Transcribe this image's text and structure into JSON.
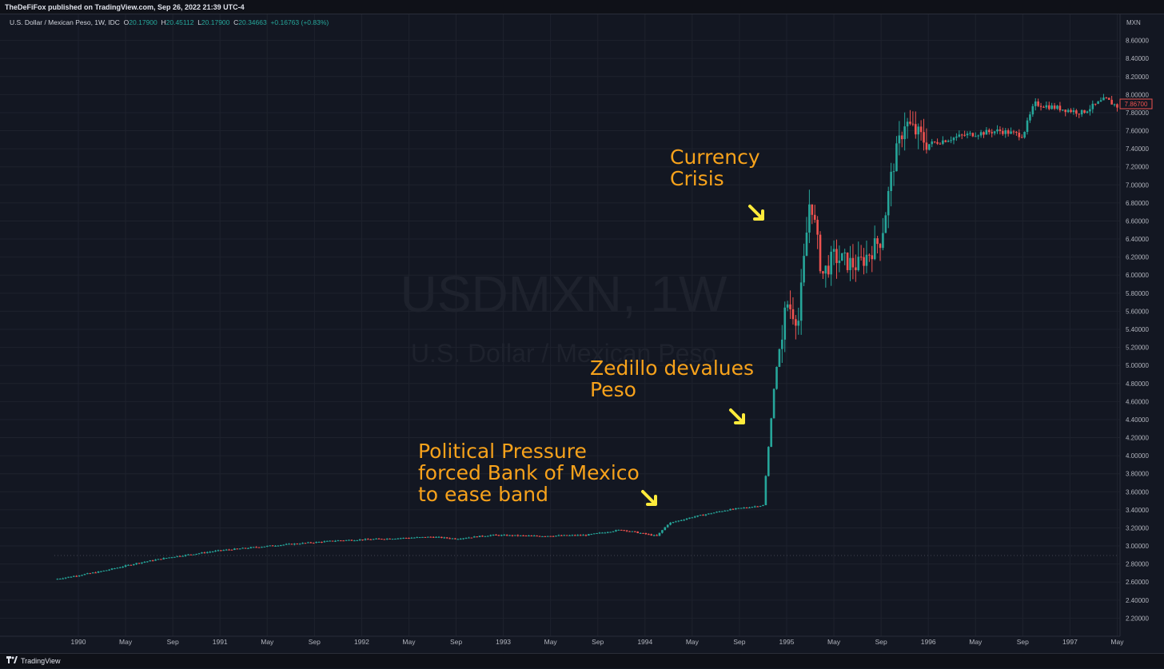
{
  "header": {
    "published_text": "TheDeFiFox published on TradingView.com, Sep 26, 2022 21:39 UTC-4"
  },
  "legend": {
    "symbol": "U.S. Dollar / Mexican Peso, 1W, IDC",
    "open_label": "O",
    "open": "20.17900",
    "high_label": "H",
    "high": "20.45112",
    "low_label": "L",
    "low": "20.17900",
    "close_label": "C",
    "close": "20.34663",
    "change": "+0.16763 (+0.83%)"
  },
  "watermark": {
    "ticker": "USDMXN, 1W",
    "name": "U.S. Dollar / Mexican Peso"
  },
  "footer": {
    "brand": "TradingView"
  },
  "colors": {
    "up": "#26a69a",
    "down": "#ef5350",
    "annotation": "#f7a21b",
    "arrow": "#ffeb3b",
    "background": "#131722"
  },
  "annotations": [
    {
      "text": "Currency\nCrisis"
    },
    {
      "text": "Zedillo devalues\nPeso"
    },
    {
      "text": "Political Pressure\nforced Bank of Mexico\nto ease band"
    }
  ],
  "chart_data": {
    "type": "candlestick",
    "currency_label": "MXN",
    "last_price_label": "7.86700",
    "ylim": [
      2.0,
      8.8
    ],
    "y_ticks": [
      "2.20000",
      "2.40000",
      "2.60000",
      "2.80000",
      "3.00000",
      "3.20000",
      "3.40000",
      "3.60000",
      "3.80000",
      "4.00000",
      "4.20000",
      "4.40000",
      "4.60000",
      "4.80000",
      "5.00000",
      "5.20000",
      "5.40000",
      "5.60000",
      "5.80000",
      "6.00000",
      "6.20000",
      "6.40000",
      "6.60000",
      "6.80000",
      "7.00000",
      "7.20000",
      "7.40000",
      "7.60000",
      "7.80000",
      "8.00000",
      "8.20000",
      "8.40000",
      "8.60000"
    ],
    "x_ticks": [
      "1990",
      "May",
      "Sep",
      "1991",
      "May",
      "Sep",
      "1992",
      "May",
      "Sep",
      "1993",
      "May",
      "Sep",
      "1994",
      "May",
      "Sep",
      "1995",
      "May",
      "Sep",
      "1996",
      "May",
      "Sep",
      "1997",
      "May"
    ],
    "x_tick_dates": [
      "1990-01",
      "1990-05",
      "1990-09",
      "1991-01",
      "1991-05",
      "1991-09",
      "1992-01",
      "1992-05",
      "1992-09",
      "1993-01",
      "1993-05",
      "1993-09",
      "1994-01",
      "1994-05",
      "1994-09",
      "1995-01",
      "1995-05",
      "1995-09",
      "1996-01",
      "1996-05",
      "1996-09",
      "1997-01",
      "1997-05"
    ],
    "series": [
      {
        "date": "1989-11",
        "close": 2.63
      },
      {
        "date": "1990-03",
        "close": 2.72
      },
      {
        "date": "1990-06",
        "close": 2.81
      },
      {
        "date": "1990-09",
        "close": 2.88
      },
      {
        "date": "1991-01",
        "close": 2.95
      },
      {
        "date": "1991-06",
        "close": 3.01
      },
      {
        "date": "1991-11",
        "close": 3.06
      },
      {
        "date": "1992-03",
        "close": 3.08
      },
      {
        "date": "1992-07",
        "close": 3.1
      },
      {
        "date": "1992-09",
        "close": 3.08
      },
      {
        "date": "1992-12",
        "close": 3.12
      },
      {
        "date": "1993-04",
        "close": 3.11
      },
      {
        "date": "1993-08",
        "close": 3.12
      },
      {
        "date": "1993-11",
        "close": 3.18
      },
      {
        "date": "1994-02",
        "close": 3.11
      },
      {
        "date": "1994-03",
        "close": 3.25
      },
      {
        "date": "1994-05",
        "close": 3.32
      },
      {
        "date": "1994-08",
        "close": 3.4
      },
      {
        "date": "1994-11",
        "close": 3.45
      },
      {
        "date": "1994-12",
        "close": 4.85
      },
      {
        "date": "1995-01",
        "close": 5.7
      },
      {
        "date": "1995-02",
        "close": 5.5
      },
      {
        "date": "1995-03",
        "close": 6.9
      },
      {
        "date": "1995-04",
        "close": 6.0
      },
      {
        "date": "1995-05",
        "close": 6.2
      },
      {
        "date": "1995-07",
        "close": 6.1
      },
      {
        "date": "1995-09",
        "close": 6.4
      },
      {
        "date": "1995-10",
        "close": 7.2
      },
      {
        "date": "1995-11",
        "close": 7.7
      },
      {
        "date": "1996-01",
        "close": 7.45
      },
      {
        "date": "1996-04",
        "close": 7.55
      },
      {
        "date": "1996-07",
        "close": 7.6
      },
      {
        "date": "1996-09",
        "close": 7.55
      },
      {
        "date": "1996-10",
        "close": 7.9
      },
      {
        "date": "1997-02",
        "close": 7.8
      },
      {
        "date": "1997-04",
        "close": 7.95
      },
      {
        "date": "1997-05",
        "close": 7.87
      }
    ]
  }
}
